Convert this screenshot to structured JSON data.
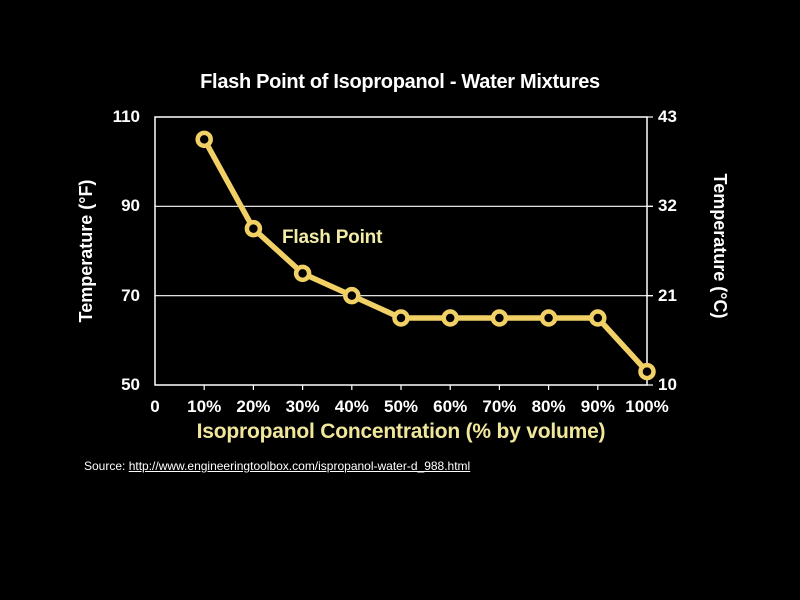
{
  "slide": {
    "background": "#000000",
    "source": {
      "prefix": "Source: ",
      "url": "http://www.engineeringtoolbox.com/ispropanol-water-d_988.html"
    }
  },
  "chart_data": {
    "type": "line",
    "title": "Flash Point of Isopropanol - Water Mixtures",
    "annotation": "Flash Point",
    "series": [
      {
        "name": "Flash Point",
        "x_percent": [
          10,
          20,
          30,
          40,
          50,
          60,
          70,
          80,
          90,
          100
        ],
        "values_F": [
          105,
          85,
          75,
          70,
          65,
          65,
          65,
          65,
          65,
          53
        ],
        "color": "#F1D165",
        "marker": "open-circle"
      }
    ],
    "x_axis": {
      "label": "Isopropanol Concentration (% by volume)",
      "tick_values": [
        0,
        10,
        20,
        30,
        40,
        50,
        60,
        70,
        80,
        90,
        100
      ],
      "tick_labels": [
        "0",
        "10%",
        "20%",
        "30%",
        "40%",
        "50%",
        "60%",
        "70%",
        "80%",
        "90%",
        "100%"
      ],
      "range": [
        0,
        100
      ]
    },
    "y_axis_left": {
      "label": "Temperature (°F)",
      "ticks": [
        50,
        70,
        90,
        110
      ],
      "range": [
        50,
        110
      ]
    },
    "y_axis_right": {
      "label": "Temperature (°C)",
      "ticks": [
        10,
        21,
        32,
        43
      ]
    },
    "gridlines_F": [
      70,
      90
    ],
    "legend_position": "none",
    "colors": {
      "line": "#F1D165",
      "annotation_text": "#F3ECA6",
      "x_axis_title": "#F0E79B",
      "frame": "#FFFFFF",
      "tick_text": "#FFFFFF",
      "background": "#000000"
    }
  }
}
